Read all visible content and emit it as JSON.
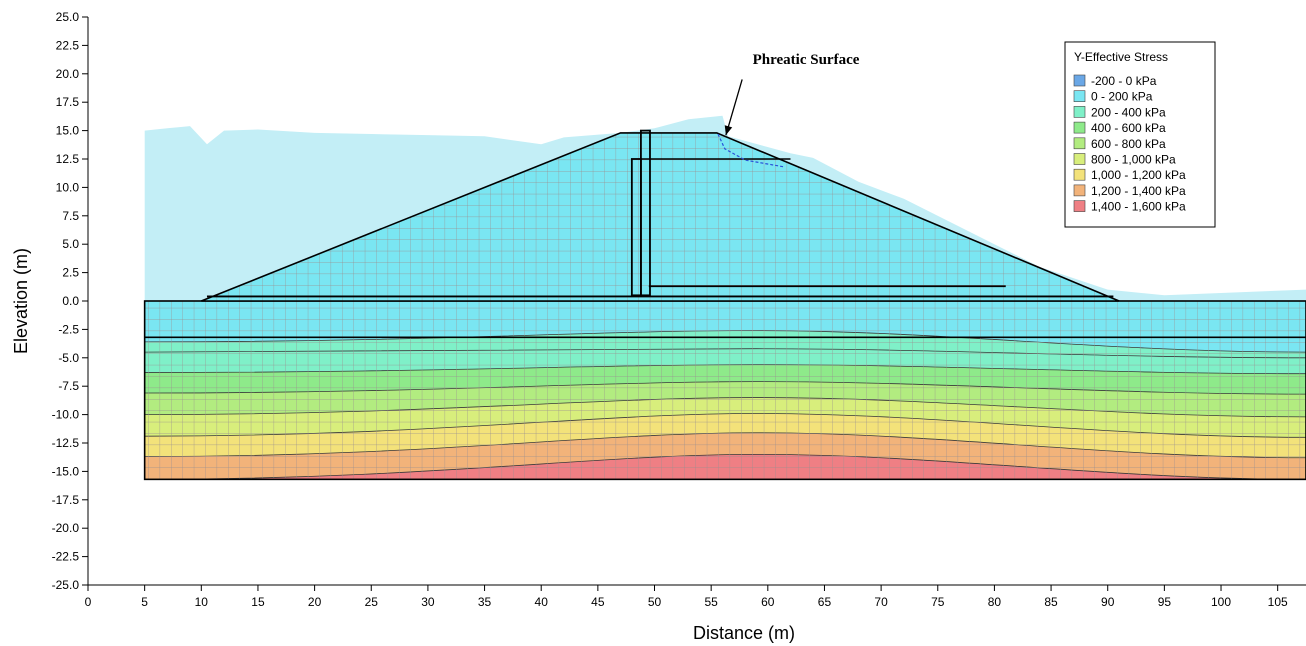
{
  "chart_data": {
    "type": "heatmap",
    "title": "",
    "xlabel": "Distance (m)",
    "ylabel": "Elevation (m)",
    "xlim": [
      0,
      107.5
    ],
    "ylim": [
      -25,
      25
    ],
    "x_ticks": [
      0,
      5,
      10,
      15,
      20,
      25,
      30,
      35,
      40,
      45,
      50,
      55,
      60,
      65,
      70,
      75,
      80,
      85,
      90,
      95,
      100,
      105
    ],
    "y_ticks": [
      "25.0",
      "22.5",
      "20.0",
      "17.5",
      "15.0",
      "12.5",
      "10.0",
      "7.5",
      "5.0",
      "2.5",
      "0.0",
      "-2.5",
      "-5.0",
      "-7.5",
      "-10.0",
      "-12.5",
      "-15.0",
      "-17.5",
      "-20.0",
      "-22.5",
      "-25.0"
    ],
    "grid": false,
    "annotation": {
      "text": "Phreatic Surface",
      "tail": [
        56.5,
        19.5
      ],
      "head": [
        56.3,
        14.6
      ]
    },
    "legend": {
      "title": "Y-Effective Stress",
      "placement": "top-right",
      "entries": [
        {
          "label": "-200 - 0 kPa",
          "color": "#6aa7e6"
        },
        {
          "label": "0 - 200 kPa",
          "color": "#7ae6f2"
        },
        {
          "label": "200 - 400 kPa",
          "color": "#7ff0c8"
        },
        {
          "label": "400 - 600 kPa",
          "color": "#8eea8a"
        },
        {
          "label": "600 - 800 kPa",
          "color": "#b2ec80"
        },
        {
          "label": "800 - 1,000 kPa",
          "color": "#d8ee7c"
        },
        {
          "label": "1,000 - 1,200 kPa",
          "color": "#f3e27a"
        },
        {
          "label": "1,200 - 1,400 kPa",
          "color": "#f2b37a"
        },
        {
          "label": "1,400 - 1,600 kPa",
          "color": "#ef7f84"
        }
      ]
    },
    "water": {
      "color": "#c3eef6",
      "outline": [
        [
          5,
          15
        ],
        [
          7,
          15.2
        ],
        [
          9,
          15.4
        ],
        [
          10.5,
          13.8
        ],
        [
          12,
          15
        ],
        [
          15,
          15.1
        ],
        [
          20,
          14.8
        ],
        [
          25,
          14.7
        ],
        [
          30,
          14.6
        ],
        [
          35,
          14.5
        ],
        [
          40,
          13.8
        ],
        [
          42,
          14.4
        ],
        [
          47,
          14.8
        ],
        [
          50,
          15.2
        ],
        [
          53,
          16
        ],
        [
          56,
          16.3
        ],
        [
          56.5,
          14.5
        ],
        [
          62,
          13
        ],
        [
          64,
          12.6
        ],
        [
          68,
          10.5
        ],
        [
          72,
          9
        ],
        [
          76,
          7
        ],
        [
          80,
          5
        ],
        [
          84,
          3
        ],
        [
          87,
          2
        ],
        [
          90,
          1
        ],
        [
          95,
          0.5
        ],
        [
          107.5,
          1
        ],
        [
          107.5,
          0
        ],
        [
          5,
          0
        ]
      ]
    },
    "embankment": {
      "polygon": [
        [
          10,
          0
        ],
        [
          47,
          14.8
        ],
        [
          55.5,
          14.8
        ],
        [
          91,
          0
        ]
      ]
    },
    "foundation": {
      "x": [
        5,
        107.5
      ],
      "y": [
        -15.7,
        0
      ],
      "layer_boundary": -3.2
    },
    "stress_contours": [
      {
        "y_left": -3.6,
        "y_mid": -2.6,
        "y_right": -4.5
      },
      {
        "y_left": -4.5,
        "y_mid": -4.2,
        "y_right": -5.0
      },
      {
        "y_left": -6.3,
        "y_mid": -5.6,
        "y_right": -6.4
      },
      {
        "y_left": -8.1,
        "y_mid": -7.1,
        "y_right": -8.2
      },
      {
        "y_left": -10.0,
        "y_mid": -8.5,
        "y_right": -10.2
      },
      {
        "y_left": -11.9,
        "y_mid": -9.9,
        "y_right": -12.0
      },
      {
        "y_left": -13.7,
        "y_mid": -11.6,
        "y_right": -13.8
      },
      {
        "y_left": -15.7,
        "y_mid": -13.5,
        "y_right": -15.7
      }
    ],
    "structures": {
      "core_wall": [
        [
          48.0,
          0.5,
          48.8,
          12.5
        ],
        [
          48.8,
          0.5,
          49.6,
          15.0
        ]
      ],
      "upper_cap": [
        [
          48.8,
          12.5,
          62.0,
          12.5
        ]
      ],
      "drain_blanket": [
        [
          10.5,
          0.4,
          90.5,
          0.4
        ],
        [
          49.5,
          1.3,
          81,
          1.3
        ]
      ]
    }
  }
}
